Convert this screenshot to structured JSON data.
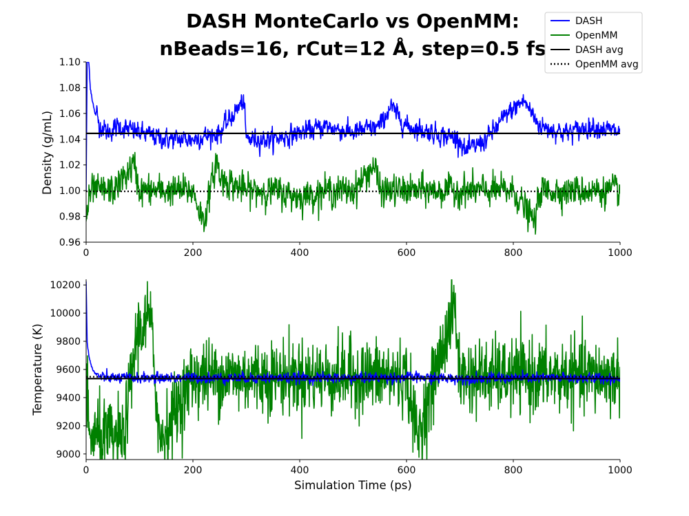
{
  "title_line1": "DASH MonteCarlo vs OpenMM:",
  "title_line2": "nBeads=16, rCut=12 Å, step=0.5 fs",
  "legend": {
    "placement": "top-right",
    "entries": [
      {
        "label": "DASH",
        "color": "#0000ff",
        "style": "solid"
      },
      {
        "label": "OpenMM",
        "color": "#008000",
        "style": "solid"
      },
      {
        "label": "DASH avg",
        "color": "#000000",
        "style": "solid"
      },
      {
        "label": "OpenMM avg",
        "color": "#000000",
        "style": "dotted"
      }
    ]
  },
  "chart_data": [
    {
      "type": "line",
      "xlabel": "",
      "ylabel": "Density (g/mL)",
      "xlim": [
        0,
        1000
      ],
      "ylim": [
        0.96,
        1.1
      ],
      "xticks": [
        0,
        200,
        400,
        600,
        800,
        1000
      ],
      "yticks": [
        0.96,
        0.98,
        1.0,
        1.02,
        1.04,
        1.06,
        1.08,
        1.1
      ],
      "ytick_labels": [
        "0.96",
        "0.98",
        "1.00",
        "1.02",
        "1.04",
        "1.06",
        "1.08",
        "1.10"
      ],
      "grid": false,
      "series": [
        {
          "name": "DASH",
          "color": "#0000ff",
          "x": [
            0,
            2,
            5,
            8,
            12,
            16,
            20,
            25,
            30,
            40,
            60,
            100,
            150,
            200,
            250,
            295,
            300,
            350,
            400,
            450,
            500,
            550,
            570,
            600,
            650,
            700,
            710,
            750,
            790,
            820,
            850,
            900,
            950,
            1000
          ],
          "y": [
            1.0,
            1.1,
            1.1,
            1.08,
            1.07,
            1.06,
            1.06,
            1.05,
            1.05,
            1.045,
            1.05,
            1.045,
            1.04,
            1.04,
            1.045,
            1.07,
            1.04,
            1.04,
            1.045,
            1.05,
            1.045,
            1.05,
            1.065,
            1.05,
            1.045,
            1.04,
            1.03,
            1.04,
            1.06,
            1.07,
            1.05,
            1.045,
            1.05,
            1.045
          ]
        },
        {
          "name": "OpenMM",
          "color": "#008000",
          "x": [
            0,
            10,
            50,
            90,
            100,
            150,
            200,
            220,
            245,
            250,
            300,
            350,
            400,
            450,
            500,
            540,
            550,
            600,
            650,
            700,
            750,
            800,
            840,
            850,
            900,
            950,
            1000
          ],
          "y": [
            0.98,
            1.0,
            1.0,
            1.02,
            1.0,
            1.0,
            1.0,
            0.975,
            1.025,
            1.01,
            1.0,
            1.0,
            0.995,
            1.0,
            1.0,
            1.02,
            1.0,
            1.0,
            1.0,
            1.0,
            1.0,
            1.0,
            0.975,
            1.0,
            1.0,
            1.0,
            1.0
          ]
        },
        {
          "name": "DASH avg",
          "color": "#000000",
          "style": "solid",
          "x": [
            0,
            1000
          ],
          "y": [
            1.0445,
            1.0445
          ]
        },
        {
          "name": "OpenMM avg",
          "color": "#000000",
          "style": "dotted",
          "x": [
            0,
            1000
          ],
          "y": [
            0.9995,
            0.9995
          ]
        }
      ]
    },
    {
      "type": "line",
      "xlabel": "Simulation Time (ps)",
      "ylabel": "Temperature (K)",
      "xlim": [
        0,
        1000
      ],
      "ylim": [
        8960,
        10240
      ],
      "xticks": [
        0,
        200,
        400,
        600,
        800,
        1000
      ],
      "yticks": [
        9000,
        9200,
        9400,
        9600,
        9800,
        10000,
        10200
      ],
      "ytick_labels": [
        "9000",
        "9200",
        "9400",
        "9600",
        "9800",
        "10000",
        "10200"
      ],
      "grid": false,
      "series": [
        {
          "name": "OpenMM",
          "color": "#008000",
          "x": [
            0,
            5,
            70,
            95,
            120,
            138,
            200,
            300,
            400,
            500,
            600,
            620,
            690,
            700,
            800,
            850,
            950,
            1000
          ],
          "y": [
            9550,
            9130,
            9100,
            9850,
            9980,
            9090,
            9550,
            9550,
            9550,
            9550,
            9550,
            9110,
            10050,
            9550,
            9550,
            9550,
            9550,
            9550
          ]
        },
        {
          "name": "DASH",
          "color": "#0000ff",
          "x": [
            0,
            2,
            5,
            10,
            15,
            20,
            30,
            50,
            100,
            200,
            300,
            400,
            500,
            600,
            700,
            800,
            900,
            1000
          ],
          "y": [
            10230,
            9800,
            9700,
            9620,
            9580,
            9560,
            9545,
            9540,
            9540,
            9540,
            9540,
            9540,
            9540,
            9545,
            9535,
            9540,
            9540,
            9535
          ]
        },
        {
          "name": "DASH avg",
          "color": "#000000",
          "style": "solid",
          "x": [
            0,
            1000
          ],
          "y": [
            9535,
            9535
          ]
        },
        {
          "name": "OpenMM avg",
          "color": "#000000",
          "style": "dotted",
          "x": [
            0,
            1000
          ],
          "y": [
            9548,
            9548
          ]
        }
      ]
    }
  ]
}
